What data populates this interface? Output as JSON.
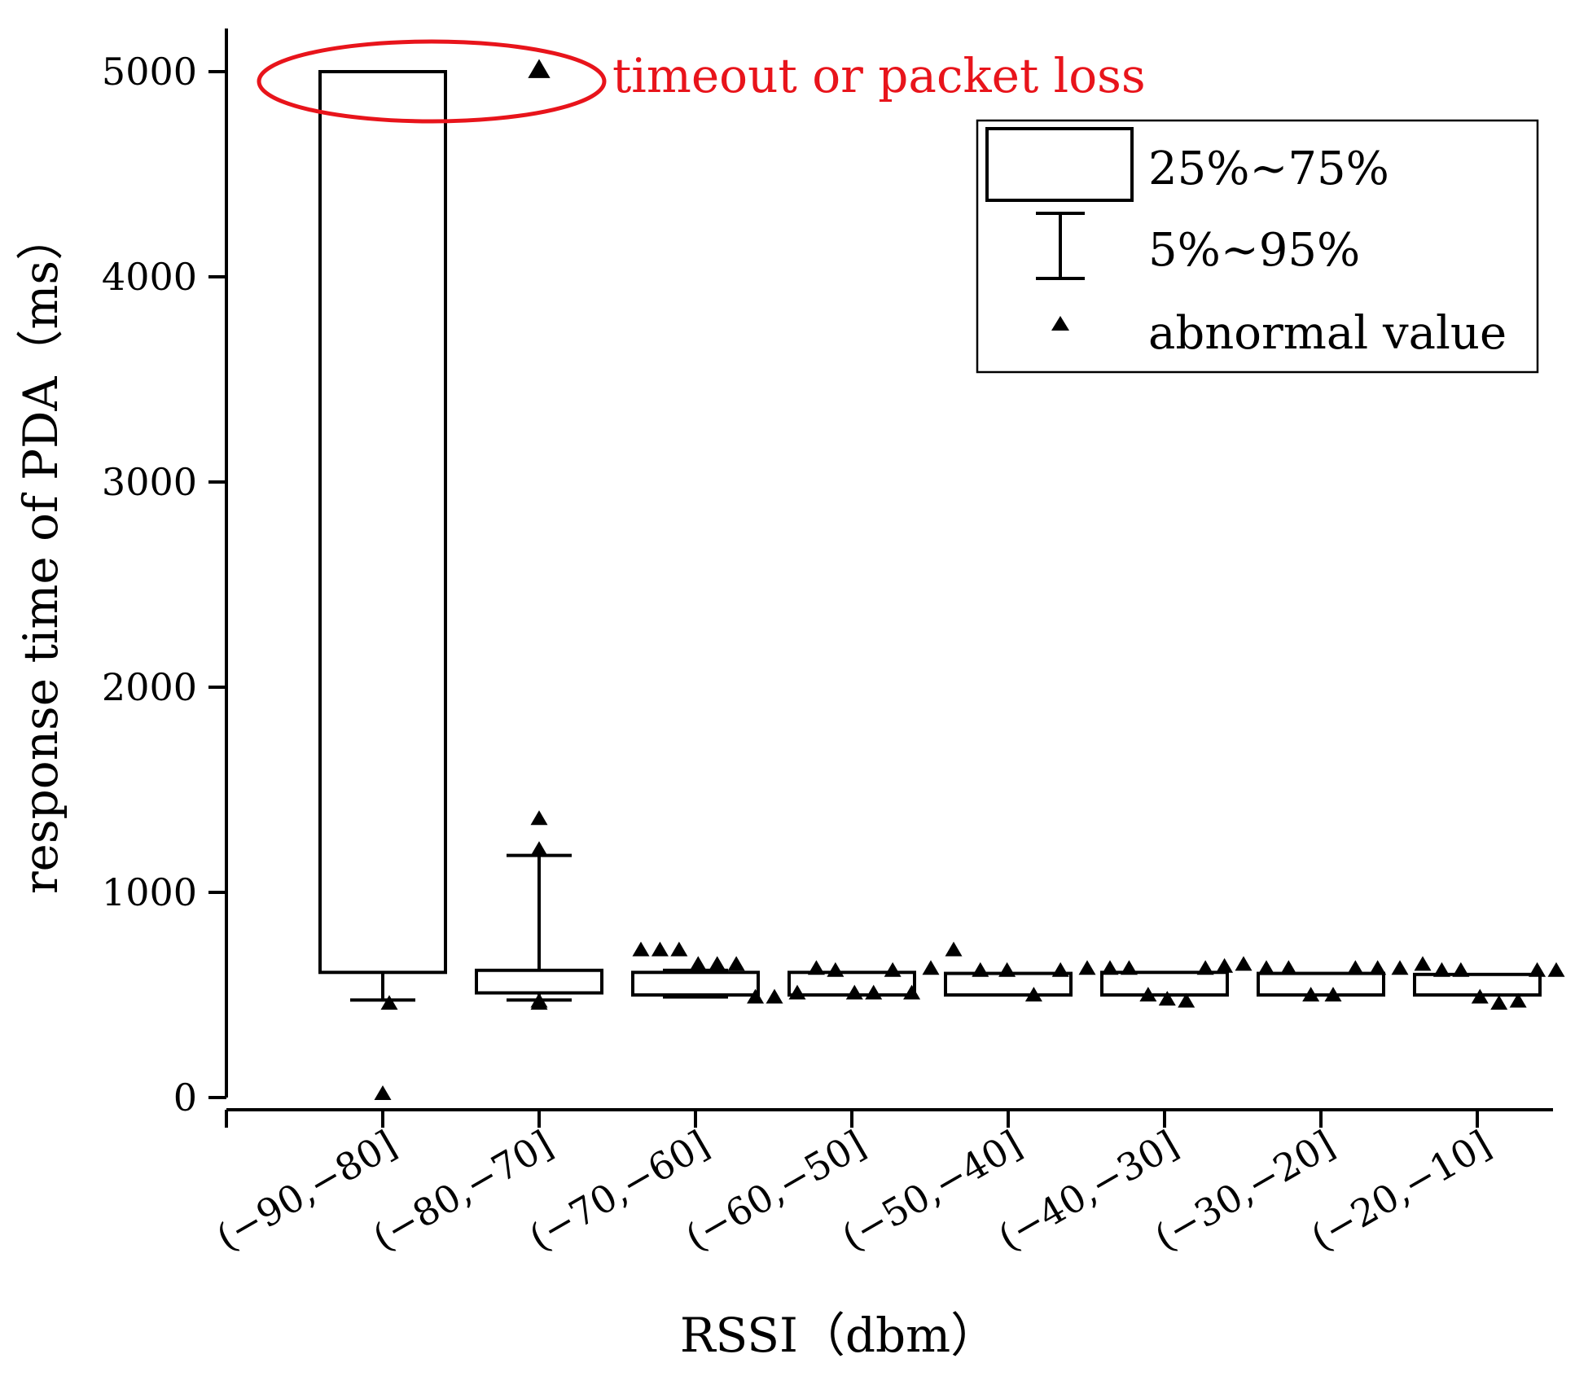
{
  "chart_data": {
    "type": "box",
    "xlabel": "RSSI（dbm）",
    "ylabel": "response time of PDA（ms）",
    "ylim": [
      0,
      5200
    ],
    "yticks": [
      0,
      1000,
      2000,
      3000,
      4000,
      5000
    ],
    "categories": [
      "(−90,−80]",
      "(−80,−70]",
      "(−70,−60]",
      "(−60,−50]",
      "(−50,−40]",
      "(−40,−30]",
      "(−30,−20]",
      "(−20,−10]"
    ],
    "boxes": [
      {
        "q1": 610,
        "q3": 5000,
        "whisker_low": 475,
        "whisker_high": 5000,
        "outliers": [
          460,
          20
        ]
      },
      {
        "q1": 510,
        "q3": 620,
        "whisker_low": 475,
        "whisker_high": 1180,
        "outliers": [
          5010,
          1360,
          1210,
          470,
          460
        ]
      },
      {
        "q1": 500,
        "q3": 610,
        "whisker_low": 490,
        "whisker_high": 620,
        "outliers": [
          720,
          720,
          720,
          650,
          650,
          650,
          490,
          490
        ]
      },
      {
        "q1": 500,
        "q3": 610,
        "whisker_low": 500,
        "whisker_high": 610,
        "outliers": [
          510,
          630,
          620,
          510,
          510,
          620,
          510,
          630
        ]
      },
      {
        "q1": 500,
        "q3": 605,
        "whisker_low": 500,
        "whisker_high": 605,
        "outliers": [
          720,
          620,
          620,
          500,
          620,
          630
        ]
      },
      {
        "q1": 500,
        "q3": 610,
        "whisker_low": 500,
        "whisker_high": 610,
        "outliers": [
          630,
          630,
          500,
          480,
          470,
          630,
          640,
          650
        ]
      },
      {
        "q1": 500,
        "q3": 605,
        "whisker_low": 500,
        "whisker_high": 605,
        "outliers": [
          630,
          630,
          500,
          500,
          630,
          630,
          630
        ]
      },
      {
        "q1": 500,
        "q3": 600,
        "whisker_low": 500,
        "whisker_high": 600,
        "outliers": [
          650,
          620,
          620,
          490,
          460,
          470,
          620,
          620
        ]
      }
    ],
    "legend": {
      "position": "top-right",
      "items": [
        "25%~75%",
        "5%~95%",
        "abnormal value"
      ]
    },
    "annotation": {
      "text": "timeout or packet loss",
      "color": "#e8141b"
    },
    "colors": {
      "box_stroke": "#000000",
      "box_fill": "#ffffff",
      "marker": "#000000",
      "annotation": "#e8141b"
    }
  }
}
